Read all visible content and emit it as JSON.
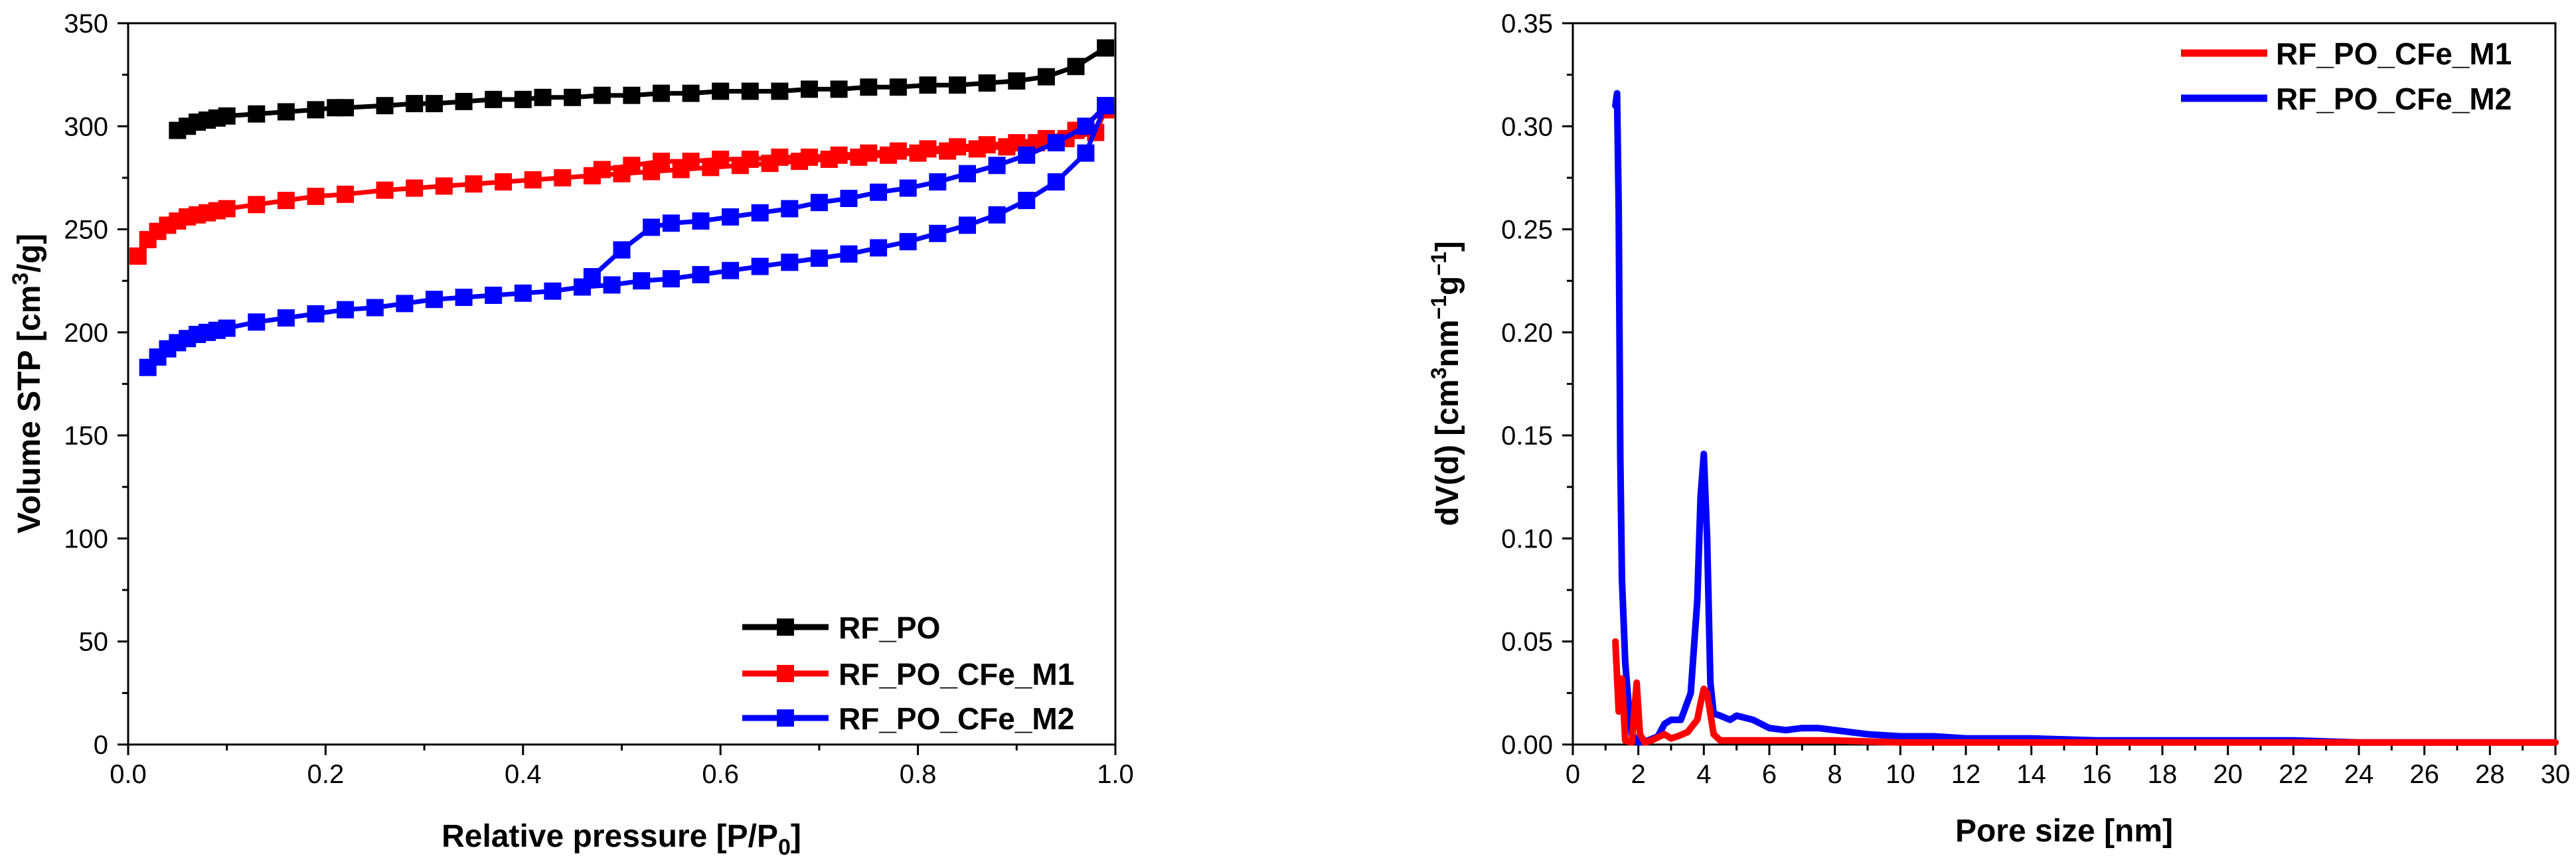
{
  "chart_data": [
    {
      "type": "line",
      "xlabel": "Relative pressure [P/P",
      "xlabel_sub": "0",
      "xlabel_end": "]",
      "ylabel": "Volume STP [cm",
      "ylabel_sup": "3",
      "ylabel_end": "/g]",
      "xlim": [
        0.0,
        1.0
      ],
      "ylim": [
        0,
        350
      ],
      "xticks": [
        "0.0",
        "0.2",
        "0.4",
        "0.6",
        "0.8",
        "1.0"
      ],
      "yticks": [
        "0",
        "50",
        "100",
        "150",
        "200",
        "250",
        "300",
        "350"
      ],
      "legend_position": "bottom-right",
      "series": [
        {
          "name": "RF_PO",
          "color": "#000000",
          "marker": "square",
          "x": [
            0.05,
            0.06,
            0.07,
            0.08,
            0.09,
            0.1,
            0.13,
            0.16,
            0.19,
            0.21,
            0.22,
            0.26,
            0.29,
            0.31,
            0.34,
            0.37,
            0.4,
            0.42,
            0.45,
            0.48,
            0.51,
            0.54,
            0.57,
            0.6,
            0.63,
            0.66,
            0.69,
            0.72,
            0.75,
            0.78,
            0.81,
            0.84,
            0.87,
            0.9,
            0.93,
            0.96,
            0.99
          ],
          "y": [
            298,
            300,
            302,
            303,
            304,
            305,
            306,
            307,
            308,
            309,
            309,
            310,
            311,
            311,
            312,
            313,
            313,
            314,
            314,
            315,
            315,
            316,
            316,
            317,
            317,
            317,
            318,
            318,
            319,
            319,
            320,
            320,
            321,
            322,
            324,
            329,
            338
          ]
        },
        {
          "name": "RF_PO_CFe_M1",
          "color": "#ff0000",
          "marker": "square",
          "adsorption": {
            "x": [
              0.01,
              0.02,
              0.03,
              0.04,
              0.05,
              0.06,
              0.07,
              0.08,
              0.09,
              0.1,
              0.13,
              0.16,
              0.19,
              0.22,
              0.26,
              0.29,
              0.32,
              0.35,
              0.38,
              0.41,
              0.44,
              0.47,
              0.5,
              0.53,
              0.56,
              0.59,
              0.62,
              0.65,
              0.68,
              0.71,
              0.74,
              0.77,
              0.8,
              0.83,
              0.86,
              0.89,
              0.92,
              0.95,
              0.98,
              0.99
            ],
            "y": [
              237,
              245,
              249,
              252,
              254,
              256,
              257,
              258,
              259,
              260,
              262,
              264,
              266,
              267,
              269,
              270,
              271,
              272,
              273,
              274,
              275,
              276,
              277,
              278,
              279,
              280,
              281,
              282,
              283,
              284,
              285,
              286,
              287,
              288,
              289,
              290,
              292,
              294,
              297,
              308
            ]
          },
          "desorption": {
            "x": [
              0.99,
              0.96,
              0.93,
              0.9,
              0.87,
              0.84,
              0.81,
              0.78,
              0.75,
              0.72,
              0.69,
              0.66,
              0.63,
              0.6,
              0.57,
              0.54,
              0.51,
              0.48
            ],
            "y": [
              308,
              298,
              294,
              292,
              291,
              290,
              289,
              288,
              287,
              286,
              285,
              285,
              284,
              284,
              283,
              283,
              281,
              279
            ]
          }
        },
        {
          "name": "RF_PO_CFe_M2",
          "color": "#0000ff",
          "marker": "square",
          "adsorption": {
            "x": [
              0.02,
              0.03,
              0.04,
              0.05,
              0.06,
              0.07,
              0.08,
              0.09,
              0.1,
              0.13,
              0.16,
              0.19,
              0.22,
              0.25,
              0.28,
              0.31,
              0.34,
              0.37,
              0.4,
              0.43,
              0.46,
              0.49,
              0.52,
              0.55,
              0.58,
              0.61,
              0.64,
              0.67,
              0.7,
              0.73,
              0.76,
              0.79,
              0.82,
              0.85,
              0.88,
              0.91,
              0.94,
              0.97,
              0.99
            ],
            "y": [
              183,
              188,
              192,
              195,
              197,
              199,
              200,
              201,
              202,
              205,
              207,
              209,
              211,
              212,
              214,
              216,
              217,
              218,
              219,
              220,
              222,
              223,
              225,
              226,
              228,
              230,
              232,
              234,
              236,
              238,
              241,
              244,
              248,
              252,
              257,
              264,
              273,
              287,
              310
            ]
          },
          "desorption": {
            "x": [
              0.99,
              0.97,
              0.94,
              0.91,
              0.88,
              0.85,
              0.82,
              0.79,
              0.76,
              0.73,
              0.7,
              0.67,
              0.64,
              0.61,
              0.58,
              0.55,
              0.53,
              0.5,
              0.47
            ],
            "y": [
              310,
              300,
              292,
              286,
              281,
              277,
              273,
              270,
              268,
              265,
              263,
              260,
              258,
              256,
              254,
              253,
              251,
              240,
              227
            ]
          }
        }
      ]
    },
    {
      "type": "line",
      "xlabel": "Pore size [nm]",
      "ylabel": "dV(d) [cm",
      "ylabel_sup1": "3",
      "ylabel_mid": "nm",
      "ylabel_sup2": "−1",
      "ylabel_mid2": "g",
      "ylabel_sup3": "−1",
      "ylabel_end": "]",
      "xlim": [
        0,
        30
      ],
      "ylim": [
        0.0,
        0.35
      ],
      "xticks": [
        "0",
        "2",
        "4",
        "6",
        "8",
        "10",
        "12",
        "14",
        "16",
        "18",
        "20",
        "22",
        "24",
        "26",
        "28",
        "30"
      ],
      "yticks": [
        "0.00",
        "0.05",
        "0.10",
        "0.15",
        "0.20",
        "0.25",
        "0.30",
        "0.35"
      ],
      "legend_position": "top-right",
      "series": [
        {
          "name": "RF_PO_CFe_M1",
          "color": "#ff0000",
          "x": [
            1.3,
            1.4,
            1.5,
            1.6,
            1.8,
            1.95,
            2.05,
            2.2,
            2.4,
            2.8,
            3.0,
            3.2,
            3.5,
            3.8,
            3.9,
            4.0,
            4.1,
            4.2,
            4.3,
            4.5,
            4.8,
            5.0,
            5.5,
            6.0,
            7.0,
            8.0,
            10.0,
            12.0,
            15.0,
            20.0,
            25.0,
            30.0
          ],
          "y": [
            0.05,
            0.016,
            0.032,
            0.002,
            0.001,
            0.03,
            0.005,
            0.001,
            0.002,
            0.005,
            0.003,
            0.004,
            0.006,
            0.012,
            0.02,
            0.027,
            0.025,
            0.015,
            0.005,
            0.002,
            0.002,
            0.002,
            0.002,
            0.002,
            0.002,
            0.002,
            0.001,
            0.001,
            0.001,
            0.001,
            0.001,
            0.001
          ]
        },
        {
          "name": "RF_PO_CFe_M2",
          "color": "#0000ff",
          "x": [
            1.3,
            1.35,
            1.4,
            1.45,
            1.5,
            1.55,
            1.6,
            1.7,
            1.8,
            2.0,
            2.3,
            2.6,
            2.8,
            3.0,
            3.3,
            3.6,
            3.8,
            3.9,
            4.0,
            4.1,
            4.2,
            4.3,
            4.5,
            4.8,
            5.0,
            5.5,
            6.0,
            6.5,
            7.0,
            7.5,
            8.0,
            8.5,
            9.0,
            10.0,
            11.0,
            12.0,
            14.0,
            16.0,
            18.0,
            20.0,
            22.0,
            24.0,
            26.0,
            28.0,
            30.0
          ],
          "y": [
            0.31,
            0.316,
            0.26,
            0.14,
            0.08,
            0.06,
            0.04,
            0.02,
            0.005,
            0.001,
            0.002,
            0.004,
            0.01,
            0.012,
            0.012,
            0.025,
            0.07,
            0.12,
            0.141,
            0.1,
            0.03,
            0.015,
            0.014,
            0.012,
            0.014,
            0.012,
            0.008,
            0.007,
            0.008,
            0.008,
            0.007,
            0.006,
            0.005,
            0.004,
            0.004,
            0.003,
            0.003,
            0.002,
            0.002,
            0.002,
            0.002,
            0.001,
            0.001,
            0.001,
            0.001
          ]
        }
      ]
    }
  ]
}
